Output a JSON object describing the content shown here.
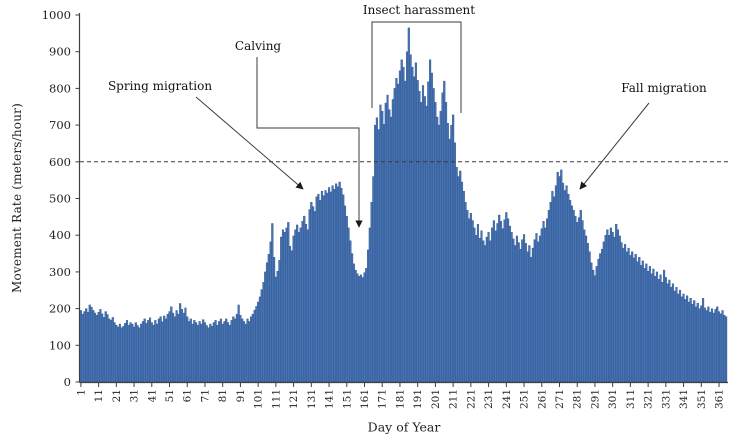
{
  "chart_data": {
    "type": "bar",
    "title": "",
    "xlabel": "Day of Year",
    "ylabel": "Movement Rate (meters/hour)",
    "x_start_day": 1,
    "x_end_day": 365,
    "ylim": [
      0,
      1000
    ],
    "y_ticks": [
      0,
      100,
      200,
      300,
      400,
      500,
      600,
      700,
      800,
      900,
      1000
    ],
    "x_tick_labels": [
      "1",
      "11",
      "21",
      "31",
      "41",
      "51",
      "61",
      "71",
      "81",
      "91",
      "101",
      "111",
      "121",
      "131",
      "141",
      "151",
      "161",
      "171",
      "181",
      "191",
      "201",
      "211",
      "221",
      "231",
      "241",
      "251",
      "261",
      "271",
      "281",
      "291",
      "301",
      "311",
      "321",
      "331",
      "341",
      "351",
      "361"
    ],
    "reference_line_value": 600,
    "grid": "off",
    "legend_position": "none",
    "bar_color": "#4673b2",
    "bar_border_color": "#2b4d86",
    "axis_color": "#3f3f3f",
    "annotations": [
      {
        "id": "spring-migration",
        "label": "Spring migration",
        "points_to_day": 129
      },
      {
        "id": "calving",
        "label": "Calving",
        "points_to_day": 158
      },
      {
        "id": "insect-harassment",
        "label": "Insect harassment",
        "spans_days": [
          166,
          214
        ]
      },
      {
        "id": "fall-migration",
        "label": "Fall migration",
        "points_to_day": 281
      }
    ],
    "values": [
      195,
      185,
      192,
      200,
      190,
      210,
      204,
      195,
      188,
      182,
      190,
      198,
      186,
      176,
      192,
      184,
      172,
      168,
      176,
      162,
      155,
      150,
      158,
      148,
      152,
      160,
      168,
      155,
      162,
      158,
      150,
      162,
      154,
      148,
      158,
      165,
      172,
      160,
      168,
      175,
      162,
      155,
      168,
      158,
      172,
      178,
      164,
      180,
      172,
      185,
      192,
      205,
      188,
      178,
      195,
      185,
      214,
      198,
      188,
      202,
      178,
      165,
      172,
      158,
      168,
      162,
      155,
      165,
      158,
      170,
      162,
      154,
      148,
      158,
      152,
      162,
      168,
      155,
      165,
      172,
      158,
      165,
      172,
      162,
      155,
      168,
      178,
      172,
      185,
      210,
      182,
      172,
      165,
      158,
      172,
      165,
      178,
      185,
      196,
      206,
      218,
      232,
      252,
      272,
      300,
      325,
      348,
      382,
      432,
      340,
      286,
      302,
      332,
      395,
      415,
      408,
      420,
      435,
      370,
      358,
      398,
      415,
      428,
      408,
      420,
      438,
      452,
      430,
      415,
      470,
      490,
      478,
      465,
      505,
      512,
      495,
      520,
      508,
      522,
      515,
      530,
      518,
      535,
      525,
      540,
      532,
      545,
      528,
      510,
      480,
      452,
      420,
      385,
      350,
      322,
      305,
      295,
      288,
      292,
      285,
      298,
      310,
      360,
      420,
      490,
      560,
      700,
      720,
      688,
      755,
      738,
      702,
      760,
      782,
      742,
      722,
      770,
      800,
      828,
      812,
      848,
      878,
      858,
      820,
      900,
      965,
      892,
      858,
      832,
      870,
      822,
      792,
      762,
      808,
      778,
      752,
      818,
      878,
      842,
      800,
      762,
      722,
      700,
      738,
      788,
      820,
      762,
      705,
      662,
      700,
      728,
      652,
      585,
      560,
      575,
      545,
      520,
      490,
      468,
      445,
      460,
      440,
      420,
      400,
      430,
      392,
      412,
      385,
      372,
      395,
      408,
      385,
      420,
      440,
      412,
      432,
      455,
      438,
      418,
      442,
      462,
      445,
      425,
      408,
      390,
      372,
      398,
      380,
      362,
      388,
      402,
      378,
      355,
      372,
      340,
      365,
      388,
      405,
      382,
      398,
      418,
      438,
      420,
      445,
      468,
      490,
      520,
      505,
      535,
      572,
      560,
      578,
      542,
      522,
      535,
      512,
      495,
      480,
      468,
      452,
      435,
      448,
      468,
      440,
      415,
      398,
      378,
      355,
      325,
      305,
      290,
      315,
      335,
      350,
      362,
      382,
      400,
      415,
      400,
      420,
      408,
      395,
      430,
      415,
      398,
      380,
      365,
      375,
      355,
      365,
      345,
      355,
      338,
      348,
      328,
      340,
      318,
      330,
      310,
      322,
      302,
      315,
      295,
      308,
      288,
      300,
      280,
      292,
      272,
      305,
      285,
      268,
      278,
      258,
      268,
      248,
      258,
      240,
      250,
      232,
      240,
      225,
      235,
      218,
      228,
      212,
      222,
      205,
      215,
      200,
      208,
      228,
      202,
      195,
      205,
      190,
      200,
      188,
      198,
      205,
      192,
      186,
      195,
      182,
      178
    ]
  }
}
